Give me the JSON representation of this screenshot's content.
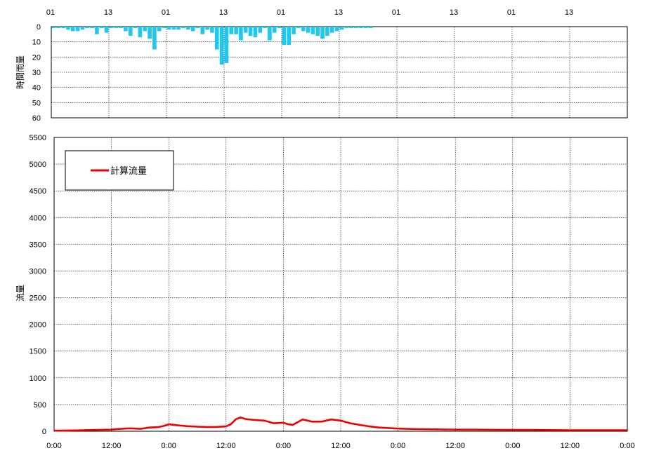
{
  "chart_data": [
    {
      "type": "bar",
      "ylabel": "時間雨量",
      "inverted_y": true,
      "ylim": [
        0,
        60
      ],
      "yticks": [
        "0",
        "10",
        "20",
        "30",
        "40",
        "50",
        "60"
      ],
      "top_ticks": [
        "01",
        "13",
        "01",
        "13",
        "01",
        "13",
        "01",
        "13",
        "01",
        "13"
      ],
      "x_range_hours": [
        0,
        120
      ],
      "grid": true,
      "bar_color": "#1ec8f0",
      "x": [
        1,
        2,
        3,
        4,
        5,
        6,
        7,
        8,
        9,
        10,
        11,
        12,
        13,
        14,
        15,
        16,
        17,
        18,
        19,
        20,
        21,
        22,
        23,
        24,
        25,
        26,
        27,
        28,
        29,
        30,
        31,
        32,
        33,
        34,
        35,
        36,
        37,
        38,
        39,
        40,
        41,
        42,
        43,
        44,
        45,
        46,
        47,
        48,
        49,
        50,
        51,
        52,
        53,
        54,
        55,
        56,
        57,
        58,
        59,
        60,
        61,
        62,
        63,
        64,
        65,
        66,
        67,
        68,
        69
      ],
      "values": [
        1,
        1,
        1,
        2,
        3,
        3,
        2,
        1,
        1,
        5,
        1,
        4,
        1,
        1,
        1,
        3,
        6,
        1,
        7,
        3,
        8,
        15,
        3,
        1,
        2,
        2,
        2,
        1,
        2,
        3,
        1,
        5,
        2,
        4,
        15,
        25,
        24,
        5,
        5,
        9,
        4,
        6,
        7,
        4,
        1,
        9,
        4,
        1,
        12,
        12,
        5,
        1,
        3,
        4,
        5,
        6,
        8,
        6,
        4,
        3,
        2,
        1,
        1,
        1,
        1,
        1,
        1,
        0,
        0
      ]
    },
    {
      "type": "line",
      "ylabel": "流量",
      "ylim": [
        0,
        5500
      ],
      "yticks": [
        "0",
        "500",
        "1000",
        "1500",
        "2000",
        "2500",
        "3000",
        "3500",
        "4000",
        "4500",
        "5000",
        "5500"
      ],
      "xticks": [
        "0:00",
        "12:00",
        "0:00",
        "12:00",
        "0:00",
        "12:00",
        "0:00",
        "12:00",
        "0:00",
        "12:00",
        "0:00"
      ],
      "x_range_hours": [
        0,
        120
      ],
      "grid": true,
      "legend_position": "top-left",
      "series": [
        {
          "name": "計算流量",
          "color": "#ee0000",
          "x": [
            0,
            3,
            6,
            9,
            12,
            14,
            16,
            18,
            20,
            22,
            23,
            24,
            26,
            28,
            30,
            32,
            34,
            36,
            37,
            38,
            39,
            40,
            42,
            44,
            46,
            48,
            49,
            50,
            52,
            54,
            56,
            58,
            60,
            62,
            64,
            66,
            68,
            70,
            72,
            76,
            80,
            84,
            88,
            92,
            96,
            100,
            104,
            108,
            112,
            116,
            120
          ],
          "values": [
            10,
            15,
            20,
            25,
            30,
            45,
            55,
            45,
            70,
            80,
            100,
            130,
            110,
            95,
            85,
            80,
            80,
            90,
            130,
            220,
            260,
            230,
            210,
            200,
            150,
            160,
            130,
            120,
            220,
            180,
            180,
            220,
            200,
            150,
            120,
            90,
            70,
            60,
            50,
            40,
            35,
            30,
            30,
            28,
            25,
            25,
            22,
            20,
            20,
            20,
            20
          ]
        }
      ]
    }
  ]
}
